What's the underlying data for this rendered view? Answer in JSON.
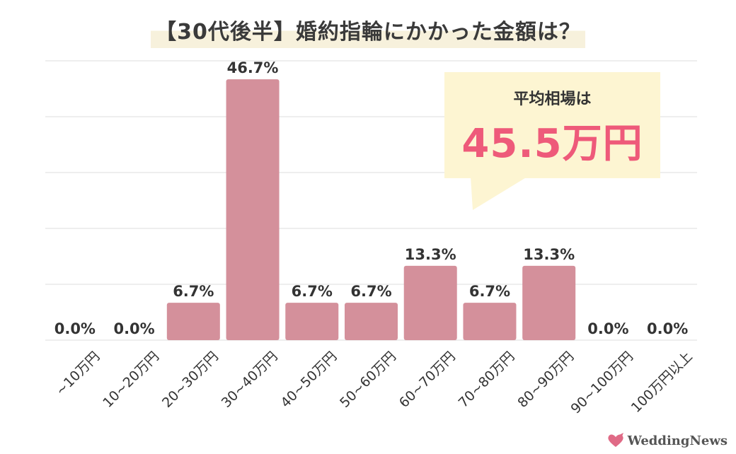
{
  "title": "【30代後半】婚約指輪にかかった金額は？",
  "callout": {
    "label": "平均相場は",
    "value": "45.5万円"
  },
  "colors": {
    "bar": "#d4909b",
    "callout_bg": "#fdf5d2",
    "callout_value": "#ee5a7a",
    "title_highlight": "#f7f1dc"
  },
  "logo": {
    "text": "WeddingNews",
    "icon": "heart-bird-icon"
  },
  "chart_data": {
    "type": "bar",
    "categories": [
      "~10万円",
      "10~20万円",
      "20~30万円",
      "30~40万円",
      "40~50万円",
      "50~60万円",
      "60~70万円",
      "70~80万円",
      "80~90万円",
      "90~100万円",
      "100万円以上"
    ],
    "values": [
      0.0,
      0.0,
      6.7,
      46.7,
      6.7,
      6.7,
      13.3,
      6.7,
      13.3,
      0.0,
      0.0
    ],
    "value_labels": [
      "0.0%",
      "0.0%",
      "6.7%",
      "46.7%",
      "6.7%",
      "6.7%",
      "13.3%",
      "6.7%",
      "13.3%",
      "0.0%",
      "0.0%"
    ],
    "title": "【30代後半】婚約指輪にかかった金額は？",
    "xlabel": "",
    "ylabel": "",
    "ylim": [
      0,
      50
    ],
    "grid": true
  }
}
